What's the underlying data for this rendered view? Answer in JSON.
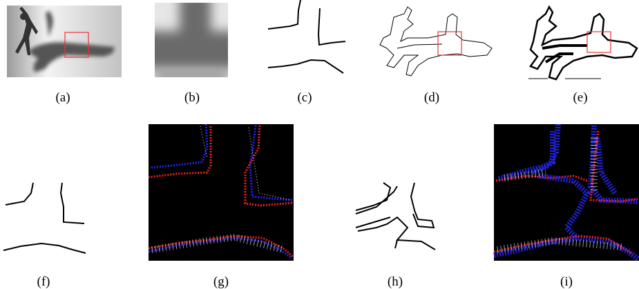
{
  "panels": [
    {
      "caption": "(a)"
    },
    {
      "caption": "(b)"
    },
    {
      "caption": "(c)"
    },
    {
      "caption": "(d)"
    },
    {
      "caption": "(e)"
    },
    {
      "caption": "(f)"
    },
    {
      "caption": "(g)"
    },
    {
      "caption": "(h)"
    },
    {
      "caption": "(i)"
    }
  ]
}
